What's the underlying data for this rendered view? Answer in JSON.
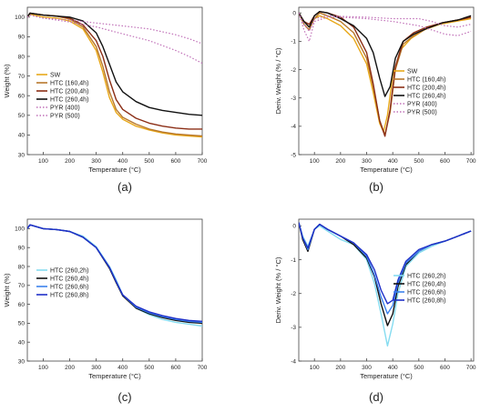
{
  "chart_data": [
    {
      "id": "a",
      "type": "line",
      "caption": "(a)",
      "xlabel": "Temperature (°C)",
      "ylabel": "Weight (%)",
      "xlim": [
        40,
        700
      ],
      "ylim": [
        30,
        105
      ],
      "xticks": [
        100,
        200,
        300,
        400,
        500,
        600,
        700
      ],
      "yticks": [
        30,
        40,
        50,
        60,
        70,
        80,
        90,
        100
      ],
      "legend_position": "bottom-left",
      "series": [
        {
          "name": "SW",
          "color": "#e8a81a",
          "dash": "",
          "width": 1.4,
          "x": [
            40,
            50,
            100,
            150,
            200,
            250,
            300,
            325,
            350,
            375,
            400,
            450,
            500,
            550,
            600,
            650,
            700
          ],
          "y": [
            100,
            101.5,
            100,
            99.5,
            98,
            94,
            83,
            72,
            59,
            51.5,
            48,
            44.5,
            42.5,
            41,
            40,
            39.5,
            39
          ]
        },
        {
          "name": "HTC (160,4h)",
          "color": "#b8782c",
          "dash": "",
          "width": 1.4,
          "x": [
            40,
            50,
            100,
            150,
            200,
            250,
            300,
            325,
            350,
            375,
            400,
            450,
            500,
            550,
            600,
            650,
            700
          ],
          "y": [
            100,
            102,
            101,
            100.5,
            99,
            95,
            85,
            75,
            62,
            53,
            49,
            45.5,
            43,
            41.5,
            40.5,
            40,
            39.5
          ]
        },
        {
          "name": "HTC (200,4h)",
          "color": "#8b2e16",
          "dash": "",
          "width": 1.4,
          "x": [
            40,
            50,
            100,
            150,
            200,
            250,
            300,
            325,
            350,
            375,
            400,
            450,
            500,
            550,
            600,
            650,
            700
          ],
          "y": [
            100,
            102,
            101,
            100.5,
            99.5,
            96,
            88,
            80,
            68,
            58,
            53,
            48.5,
            46,
            44.5,
            43.5,
            43,
            43
          ]
        },
        {
          "name": "HTC (260,4h)",
          "color": "#111111",
          "dash": "",
          "width": 1.4,
          "x": [
            40,
            50,
            100,
            150,
            200,
            250,
            300,
            325,
            350,
            375,
            400,
            450,
            500,
            550,
            600,
            650,
            700
          ],
          "y": [
            100,
            102,
            101,
            100.5,
            100,
            98,
            92,
            85,
            76,
            67,
            62,
            57,
            54,
            52.5,
            51.5,
            50.5,
            50
          ]
        },
        {
          "name": "PYR (400)",
          "color": "#c070b8",
          "dash": "1.5,2",
          "width": 1.2,
          "x": [
            40,
            50,
            100,
            200,
            300,
            400,
            500,
            600,
            650,
            700
          ],
          "y": [
            100,
            101,
            99.5,
            98.5,
            97,
            95.5,
            94,
            91,
            89,
            86.5
          ]
        },
        {
          "name": "PYR (500)",
          "color": "#c070b8",
          "dash": "1.5,2",
          "width": 1.2,
          "x": [
            40,
            50,
            100,
            200,
            300,
            400,
            500,
            600,
            650,
            700
          ],
          "y": [
            100,
            101,
            99.5,
            97.5,
            95,
            91.5,
            88,
            83,
            80,
            76.5
          ]
        }
      ]
    },
    {
      "id": "b",
      "type": "line",
      "caption": "(b)",
      "xlabel": "Temperature (°C)",
      "ylabel": "Deriv. Weight (% / °C)",
      "xlim": [
        40,
        710
      ],
      "ylim": [
        -5,
        0.2
      ],
      "xticks": [
        100,
        200,
        300,
        400,
        500,
        600,
        700
      ],
      "yticks": [
        -5,
        -4,
        -3,
        -2,
        -1,
        0
      ],
      "legend_position": "bottom-right",
      "series": [
        {
          "name": "SW",
          "color": "#e8a81a",
          "dash": "",
          "width": 1.4,
          "x": [
            40,
            60,
            80,
            100,
            120,
            150,
            200,
            250,
            300,
            325,
            350,
            365,
            380,
            400,
            430,
            470,
            520,
            580,
            640,
            700
          ],
          "y": [
            0,
            -0.3,
            -0.5,
            -0.2,
            -0.1,
            -0.2,
            -0.45,
            -0.9,
            -1.8,
            -2.8,
            -3.9,
            -4.2,
            -3.6,
            -2.2,
            -1.3,
            -0.9,
            -0.6,
            -0.4,
            -0.3,
            -0.2
          ]
        },
        {
          "name": "HTC (160,4h)",
          "color": "#b8782c",
          "dash": "",
          "width": 1.4,
          "x": [
            40,
            60,
            80,
            100,
            120,
            150,
            200,
            250,
            300,
            325,
            350,
            370,
            390,
            410,
            440,
            480,
            530,
            590,
            650,
            700
          ],
          "y": [
            0,
            -0.4,
            -0.6,
            -0.2,
            0,
            -0.1,
            -0.3,
            -0.7,
            -1.6,
            -2.6,
            -3.8,
            -4.3,
            -3.5,
            -2.0,
            -1.1,
            -0.8,
            -0.55,
            -0.35,
            -0.25,
            -0.15
          ]
        },
        {
          "name": "HTC (200,4h)",
          "color": "#8b2e16",
          "dash": "",
          "width": 1.4,
          "x": [
            40,
            60,
            80,
            100,
            120,
            150,
            200,
            250,
            300,
            325,
            350,
            370,
            390,
            410,
            440,
            480,
            530,
            590,
            650,
            700
          ],
          "y": [
            0,
            -0.3,
            -0.4,
            -0.1,
            0.05,
            0,
            -0.15,
            -0.5,
            -1.4,
            -2.5,
            -3.8,
            -4.35,
            -3.4,
            -1.9,
            -1.0,
            -0.7,
            -0.5,
            -0.35,
            -0.25,
            -0.15
          ]
        },
        {
          "name": "HTC (260,4h)",
          "color": "#111111",
          "dash": "",
          "width": 1.4,
          "x": [
            40,
            60,
            80,
            100,
            120,
            150,
            200,
            250,
            300,
            325,
            350,
            370,
            390,
            410,
            440,
            480,
            530,
            590,
            650,
            700
          ],
          "y": [
            0,
            -0.3,
            -0.5,
            -0.1,
            0.05,
            0,
            -0.2,
            -0.45,
            -0.9,
            -1.4,
            -2.3,
            -2.95,
            -2.6,
            -1.6,
            -1.0,
            -0.75,
            -0.55,
            -0.35,
            -0.25,
            -0.1
          ]
        },
        {
          "name": "PYR (400)",
          "color": "#c070b8",
          "dash": "1.5,2",
          "width": 1.2,
          "x": [
            40,
            60,
            80,
            100,
            150,
            200,
            300,
            400,
            500,
            550,
            600,
            650,
            700
          ],
          "y": [
            0,
            -0.4,
            -0.65,
            -0.2,
            -0.1,
            -0.12,
            -0.15,
            -0.2,
            -0.2,
            -0.3,
            -0.45,
            -0.5,
            -0.4
          ]
        },
        {
          "name": "PYR (500)",
          "color": "#c070b8",
          "dash": "1.5,2",
          "width": 1.2,
          "x": [
            40,
            60,
            80,
            100,
            150,
            200,
            300,
            400,
            500,
            550,
            600,
            650,
            700
          ],
          "y": [
            0,
            -0.6,
            -1.0,
            -0.3,
            -0.15,
            -0.15,
            -0.2,
            -0.3,
            -0.45,
            -0.6,
            -0.75,
            -0.8,
            -0.65
          ]
        }
      ]
    },
    {
      "id": "c",
      "type": "line",
      "caption": "(c)",
      "xlabel": "Temperature (°C)",
      "ylabel": "Weight (%)",
      "xlim": [
        40,
        700
      ],
      "ylim": [
        30,
        105
      ],
      "xticks": [
        100,
        200,
        300,
        400,
        500,
        600,
        700
      ],
      "yticks": [
        30,
        40,
        50,
        60,
        70,
        80,
        90,
        100
      ],
      "legend_position": "bottom-left",
      "series": [
        {
          "name": "HTC (260,2h)",
          "color": "#86dcf0",
          "dash": "",
          "width": 1.4,
          "x": [
            40,
            50,
            100,
            150,
            200,
            250,
            300,
            350,
            375,
            400,
            450,
            500,
            550,
            600,
            650,
            700
          ],
          "y": [
            100,
            102,
            100,
            99.5,
            98.5,
            96,
            90.5,
            80,
            73,
            65,
            58,
            54.5,
            52,
            50.5,
            49.5,
            48.5
          ]
        },
        {
          "name": "HTC (260,4h)",
          "color": "#111111",
          "dash": "",
          "width": 1.4,
          "x": [
            40,
            50,
            100,
            150,
            200,
            250,
            300,
            350,
            375,
            400,
            450,
            500,
            550,
            600,
            650,
            700
          ],
          "y": [
            100,
            102,
            100,
            99.5,
            98.5,
            95.5,
            90,
            79,
            71.5,
            64.5,
            58,
            55,
            53,
            51.5,
            50.5,
            50
          ]
        },
        {
          "name": "HTC (260,6h)",
          "color": "#3c82ec",
          "dash": "",
          "width": 1.4,
          "x": [
            40,
            50,
            100,
            150,
            200,
            250,
            300,
            350,
            375,
            400,
            450,
            500,
            550,
            600,
            650,
            700
          ],
          "y": [
            100,
            102,
            100,
            99.5,
            98.5,
            95.5,
            90,
            79.5,
            72,
            65,
            58.5,
            55.5,
            53.5,
            52,
            51,
            50.5
          ]
        },
        {
          "name": "HTC (260,8h)",
          "color": "#1f2fc8",
          "dash": "",
          "width": 1.4,
          "x": [
            40,
            50,
            100,
            150,
            200,
            250,
            300,
            350,
            375,
            400,
            450,
            500,
            550,
            600,
            650,
            700
          ],
          "y": [
            100,
            102,
            100,
            99.5,
            98.5,
            95.5,
            90,
            79.5,
            72,
            65,
            59,
            56,
            54,
            52.5,
            51.5,
            51
          ]
        }
      ]
    },
    {
      "id": "d",
      "type": "line",
      "caption": "(d)",
      "xlabel": "Temperature (°C)",
      "ylabel": "Deriv. Weight (% / °C)",
      "xlim": [
        40,
        710
      ],
      "ylim": [
        -4,
        0.2
      ],
      "xticks": [
        100,
        200,
        300,
        400,
        500,
        600,
        700
      ],
      "yticks": [
        -4,
        -3,
        -2,
        -1,
        0
      ],
      "legend_position": "bottom-right",
      "series": [
        {
          "name": "HTC (260,2h)",
          "color": "#86dcf0",
          "dash": "",
          "width": 1.4,
          "x": [
            40,
            55,
            75,
            100,
            120,
            150,
            200,
            250,
            300,
            330,
            355,
            380,
            400,
            420,
            450,
            500,
            550,
            600,
            650,
            700
          ],
          "y": [
            0.1,
            -0.3,
            -0.6,
            -0.1,
            0,
            -0.15,
            -0.4,
            -0.55,
            -1.0,
            -1.7,
            -2.6,
            -3.55,
            -2.9,
            -2.0,
            -1.2,
            -0.8,
            -0.6,
            -0.45,
            -0.3,
            -0.15
          ]
        },
        {
          "name": "HTC (260,4h)",
          "color": "#111111",
          "dash": "",
          "width": 1.4,
          "x": [
            40,
            55,
            75,
            100,
            120,
            150,
            200,
            250,
            300,
            330,
            355,
            380,
            400,
            420,
            450,
            500,
            550,
            600,
            650,
            700
          ],
          "y": [
            0.1,
            -0.4,
            -0.75,
            -0.1,
            0.05,
            -0.1,
            -0.3,
            -0.55,
            -0.95,
            -1.5,
            -2.3,
            -2.95,
            -2.6,
            -1.8,
            -1.15,
            -0.75,
            -0.55,
            -0.45,
            -0.3,
            -0.15
          ]
        },
        {
          "name": "HTC (260,6h)",
          "color": "#3c82ec",
          "dash": "",
          "width": 1.4,
          "x": [
            40,
            55,
            75,
            100,
            120,
            150,
            200,
            250,
            300,
            330,
            355,
            380,
            400,
            420,
            450,
            500,
            550,
            600,
            650,
            700
          ],
          "y": [
            0.1,
            -0.35,
            -0.7,
            -0.1,
            0.05,
            -0.1,
            -0.3,
            -0.5,
            -0.9,
            -1.45,
            -2.1,
            -2.6,
            -2.35,
            -1.7,
            -1.1,
            -0.75,
            -0.55,
            -0.45,
            -0.3,
            -0.15
          ]
        },
        {
          "name": "HTC (260,8h)",
          "color": "#1f2fc8",
          "dash": "",
          "width": 1.4,
          "x": [
            40,
            55,
            75,
            100,
            120,
            150,
            200,
            250,
            300,
            330,
            355,
            380,
            400,
            420,
            450,
            500,
            550,
            600,
            650,
            700
          ],
          "y": [
            0.1,
            -0.35,
            -0.65,
            -0.1,
            0.05,
            -0.1,
            -0.3,
            -0.5,
            -0.85,
            -1.3,
            -1.9,
            -2.3,
            -2.2,
            -1.6,
            -1.05,
            -0.7,
            -0.55,
            -0.45,
            -0.3,
            -0.15
          ]
        }
      ]
    }
  ]
}
